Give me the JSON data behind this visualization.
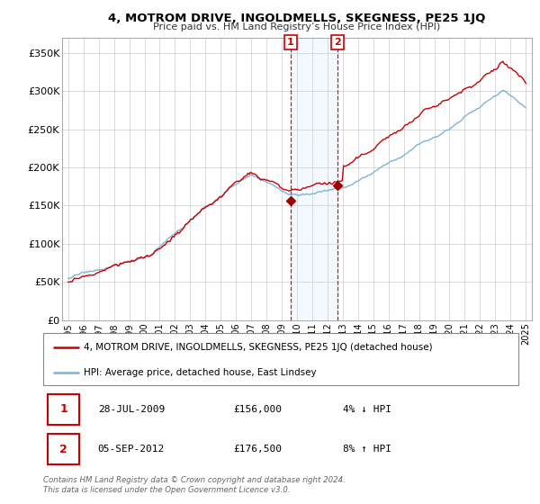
{
  "title": "4, MOTROM DRIVE, INGOLDMELLS, SKEGNESS, PE25 1JQ",
  "subtitle": "Price paid vs. HM Land Registry’s House Price Index (HPI)",
  "ylim": [
    0,
    370000
  ],
  "yticks": [
    0,
    50000,
    100000,
    150000,
    200000,
    250000,
    300000,
    350000
  ],
  "ytick_labels": [
    "£0",
    "£50K",
    "£100K",
    "£150K",
    "£200K",
    "£250K",
    "£300K",
    "£350K"
  ],
  "sale1_date": 2009.57,
  "sale1_price": 156000,
  "sale2_date": 2012.68,
  "sale2_price": 176500,
  "legend_line1": "4, MOTROM DRIVE, INGOLDMELLS, SKEGNESS, PE25 1JQ (detached house)",
  "legend_line2": "HPI: Average price, detached house, East Lindsey",
  "annotation1_num": "1",
  "annotation1_date": "28-JUL-2009",
  "annotation1_price": "£156,000",
  "annotation1_hpi": "4% ↓ HPI",
  "annotation2_num": "2",
  "annotation2_date": "05-SEP-2012",
  "annotation2_price": "£176,500",
  "annotation2_hpi": "8% ↑ HPI",
  "footer": "Contains HM Land Registry data © Crown copyright and database right 2024.\nThis data is licensed under the Open Government Licence v3.0.",
  "hpi_color": "#7ab4d8",
  "price_color": "#cc0000",
  "marker_color": "#990000",
  "shade_color": "#ddeeff",
  "background_color": "#ffffff",
  "grid_color": "#cccccc",
  "xlim_left": 1994.6,
  "xlim_right": 2025.4
}
